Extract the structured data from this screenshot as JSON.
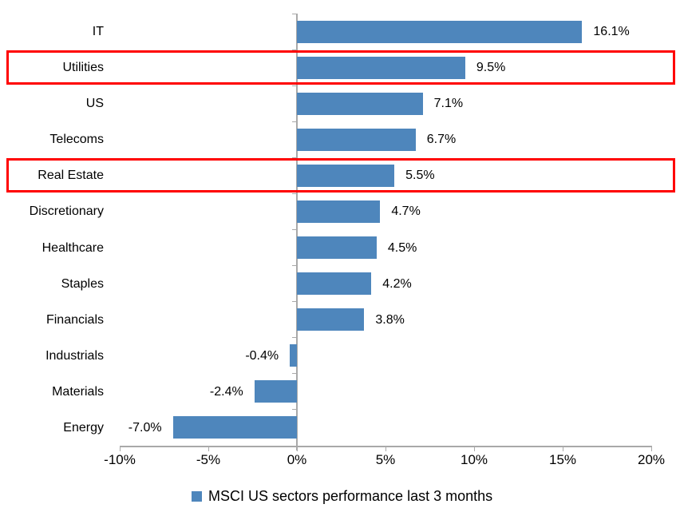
{
  "chart_data": {
    "type": "bar",
    "orientation": "horizontal",
    "title": "",
    "categories": [
      "IT",
      "Utilities",
      "US",
      "Telecoms",
      "Real Estate",
      "Discretionary",
      "Healthcare",
      "Staples",
      "Financials",
      "Industrials",
      "Materials",
      "Energy"
    ],
    "values": [
      16.1,
      9.5,
      7.1,
      6.7,
      5.5,
      4.7,
      4.5,
      4.2,
      3.8,
      -0.4,
      -2.4,
      -7.0
    ],
    "value_labels": [
      "16.1%",
      "9.5%",
      "7.1%",
      "6.7%",
      "5.5%",
      "4.7%",
      "4.5%",
      "4.2%",
      "3.8%",
      "-0.4%",
      "-2.4%",
      "-7.0%"
    ],
    "x_ticks": [
      "-10%",
      "-5%",
      "0%",
      "5%",
      "10%",
      "15%",
      "20%"
    ],
    "x_tick_values": [
      -10,
      -5,
      0,
      5,
      10,
      15,
      20
    ],
    "xlim": [
      -10,
      20
    ],
    "grid": false,
    "legend": "MSCI US sectors performance last 3 months",
    "legend_position": "bottom-center",
    "highlighted_categories": [
      "Utilities",
      "Real Estate"
    ],
    "colors": {
      "bar": "#4e86bc",
      "highlight_border": "#ff0000",
      "axis_line": "#a9a9a9",
      "text": "#000000",
      "background": "#ffffff"
    }
  }
}
